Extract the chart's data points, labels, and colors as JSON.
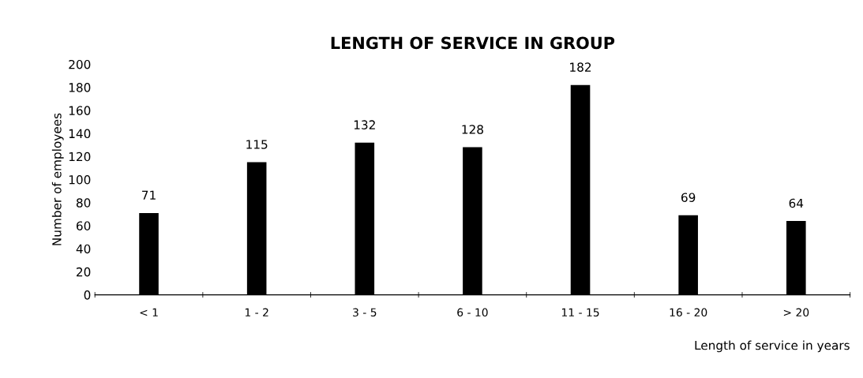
{
  "chart_data": {
    "type": "bar",
    "title": "LENGTH OF SERVICE IN GROUP",
    "xlabel": "Length of service in years",
    "ylabel": "Number of employees",
    "categories": [
      "< 1",
      "1 - 2",
      "3 - 5",
      "6 - 10",
      "11 - 15",
      "16 - 20",
      "> 20"
    ],
    "values": [
      71,
      115,
      132,
      128,
      182,
      69,
      64
    ],
    "color": "#000000",
    "ylim": [
      0,
      200
    ],
    "yticks": [
      0,
      20,
      40,
      60,
      80,
      100,
      120,
      140,
      160,
      180,
      200
    ],
    "data_labels": true,
    "grid": false,
    "legend": false
  }
}
